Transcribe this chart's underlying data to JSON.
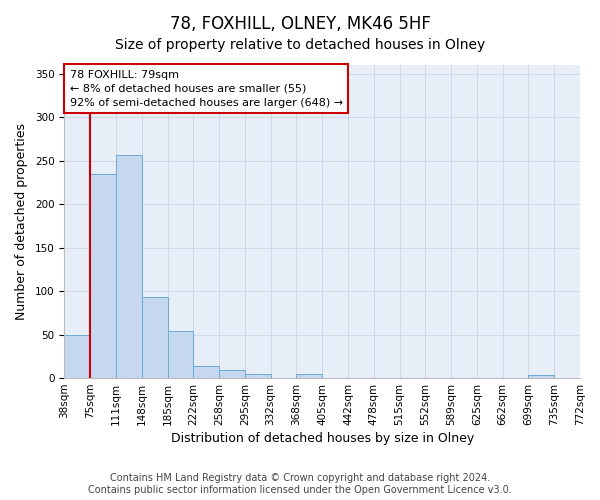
{
  "title": "78, FOXHILL, OLNEY, MK46 5HF",
  "subtitle": "Size of property relative to detached houses in Olney",
  "xlabel": "Distribution of detached houses by size in Olney",
  "ylabel": "Number of detached properties",
  "bar_values": [
    49,
    235,
    256,
    93,
    54,
    14,
    9,
    5,
    0,
    5,
    0,
    0,
    0,
    0,
    0,
    0,
    0,
    0,
    4,
    0
  ],
  "bin_labels": [
    "38sqm",
    "75sqm",
    "111sqm",
    "148sqm",
    "185sqm",
    "222sqm",
    "258sqm",
    "295sqm",
    "332sqm",
    "368sqm",
    "405sqm",
    "442sqm",
    "478sqm",
    "515sqm",
    "552sqm",
    "589sqm",
    "625sqm",
    "662sqm",
    "699sqm",
    "735sqm",
    "772sqm"
  ],
  "bar_color": "#c5d8f0",
  "bar_edge_color": "#6aaad4",
  "grid_color": "#c8d4e8",
  "bg_color": "#e8eef8",
  "vline_color": "#cc0000",
  "vline_x_index": 1,
  "annotation_text": "78 FOXHILL: 79sqm\n← 8% of detached houses are smaller (55)\n92% of semi-detached houses are larger (648) →",
  "annotation_box_color": "#ffffff",
  "annotation_box_edgecolor": "#cc0000",
  "ylim": [
    0,
    360
  ],
  "yticks": [
    0,
    50,
    100,
    150,
    200,
    250,
    300,
    350
  ],
  "footer_line1": "Contains HM Land Registry data © Crown copyright and database right 2024.",
  "footer_line2": "Contains public sector information licensed under the Open Government Licence v3.0.",
  "title_fontsize": 12,
  "subtitle_fontsize": 10,
  "label_fontsize": 9,
  "tick_fontsize": 7.5,
  "footer_fontsize": 7
}
